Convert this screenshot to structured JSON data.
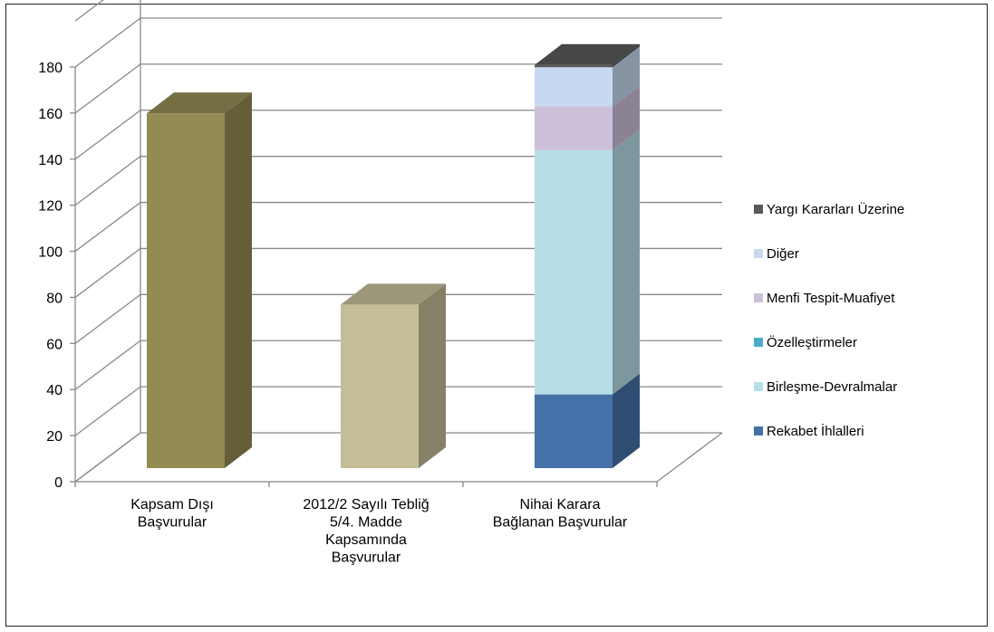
{
  "chart_data": {
    "type": "bar",
    "stacked": true,
    "three_d": true,
    "title": "",
    "xlabel": "",
    "ylabel": "",
    "ylim": [
      0,
      180
    ],
    "yticks": [
      0,
      20,
      40,
      60,
      80,
      100,
      120,
      140,
      160,
      180
    ],
    "grid": true,
    "legend_position": "right",
    "categories": [
      [
        "Kapsam Dışı",
        "Başvurular"
      ],
      [
        "2012/2 Sayılı Tebliğ",
        "5/4. Madde",
        "Kapsamında",
        "Başvurular"
      ],
      [
        "Nihai Karara",
        "Bağlanan Başvurular"
      ]
    ],
    "series": [
      {
        "name": "Kapsam Dışı Başvurular",
        "color": "#948A54",
        "values": [
          154,
          0,
          0
        ],
        "in_legend": false
      },
      {
        "name": "2012/2 Sayılı Tebliğ 5/4. Madde Kapsamında Başvurular",
        "color": "#C4BD97",
        "values": [
          0,
          71,
          0
        ],
        "in_legend": false
      },
      {
        "name": "Rekabet İhlalleri",
        "color": "#4571A8",
        "values": [
          0,
          0,
          32
        ]
      },
      {
        "name": "Birleşme-Devralmalar",
        "color": "#B7DEE8",
        "values": [
          0,
          0,
          106
        ]
      },
      {
        "name": "Özelleştirmeler",
        "color": "#4BACC6",
        "values": [
          0,
          0,
          0
        ]
      },
      {
        "name": "Menfi Tespit-Muafiyet",
        "color": "#CCC0DA",
        "values": [
          0,
          0,
          19
        ]
      },
      {
        "name": "Diğer",
        "color": "#C6D9F1",
        "values": [
          0,
          0,
          17
        ]
      },
      {
        "name": "Yargı Kararları Üzerine",
        "color": "#595959",
        "values": [
          0,
          0,
          1
        ]
      }
    ],
    "legend_order": [
      "Yargı Kararları Üzerine",
      "Diğer",
      "Menfi Tespit-Muafiyet",
      "Özelleştirmeler",
      "Birleşme-Devralmalar",
      "Rekabet İhlalleri"
    ]
  }
}
